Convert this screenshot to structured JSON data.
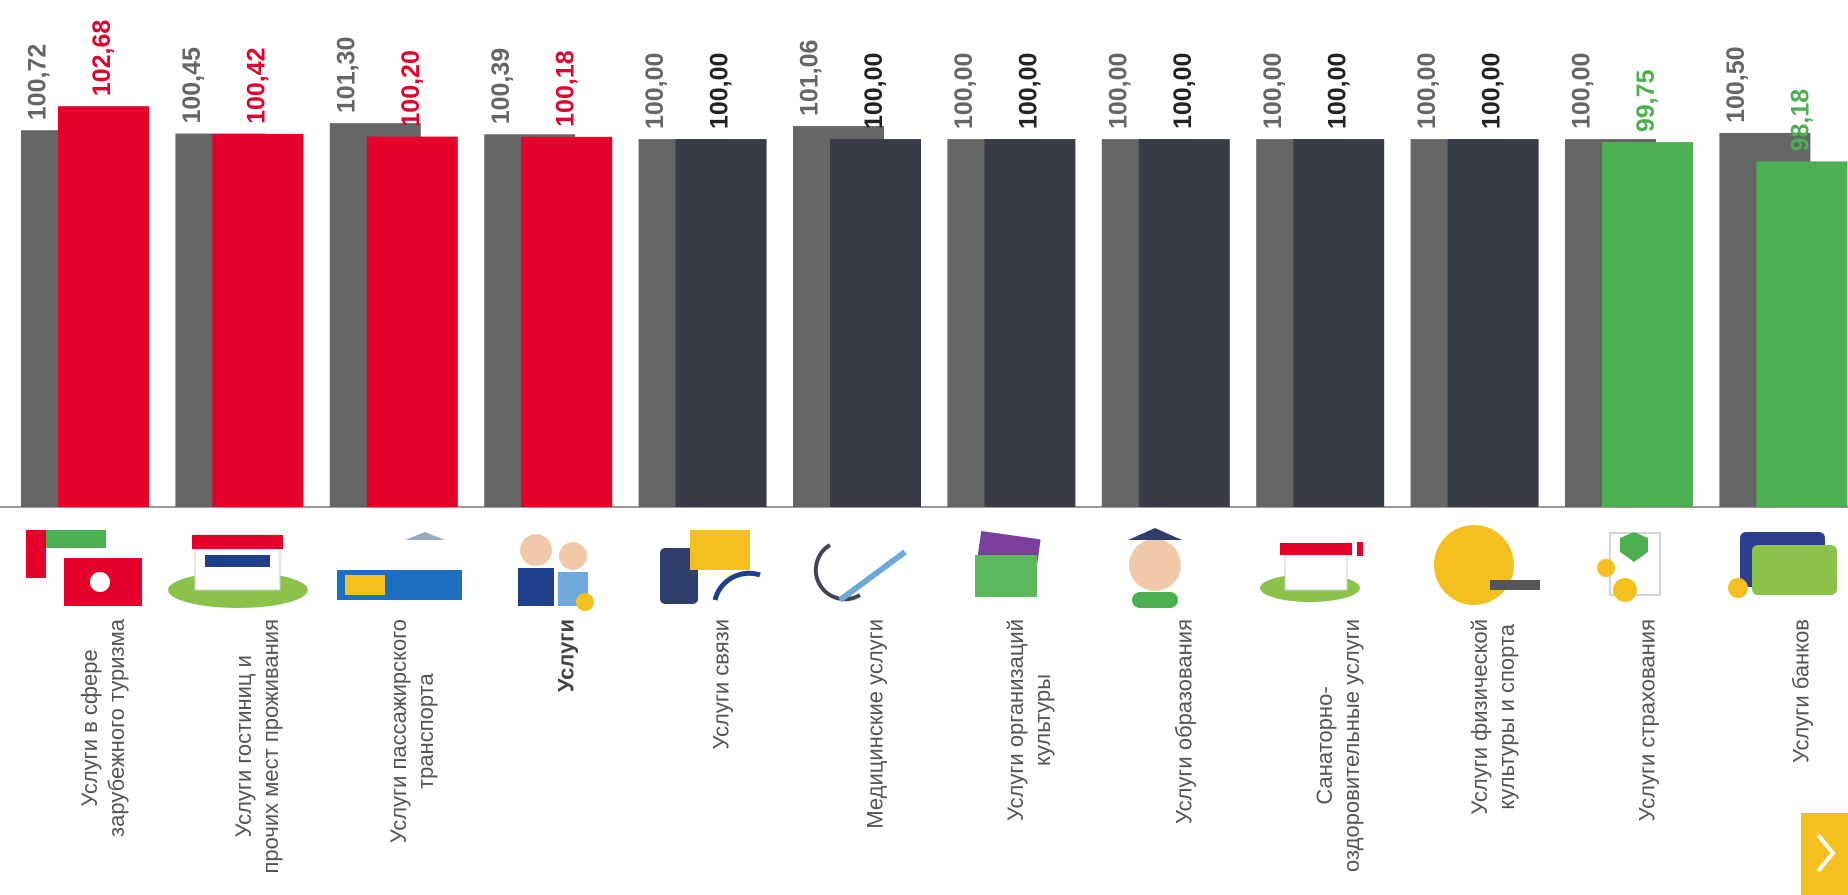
{
  "chart_data": {
    "type": "bar",
    "categories": [
      "Услуги в сфере\nзарубежного туризма",
      "Услуги гостиниц и\nпрочих мест проживания",
      "Услуги пассажирского\nтранспорта",
      "Услуги",
      "Услуги связи",
      "Медицинские услуги",
      "Услуги организаций\nкультуры",
      "Услуги образования",
      "Санаторно-\nоздоровительные услуги",
      "Услуги физической\nкультуры и спорта",
      "Услуги страхования",
      "Услуги банков"
    ],
    "category_bold": [
      false,
      false,
      false,
      true,
      false,
      false,
      false,
      false,
      false,
      false,
      false,
      false
    ],
    "series": [
      {
        "color": "#666666",
        "values": [
          100.72,
          100.45,
          101.3,
          100.39,
          100.0,
          101.06,
          100.0,
          100.0,
          100.0,
          100.0,
          100.0,
          100.5
        ],
        "value_labels": [
          "100,72",
          "100,45",
          "101,30",
          "100,39",
          "100,00",
          "101,06",
          "100,00",
          "100,00",
          "100,00",
          "100,00",
          "100,00",
          "100,50"
        ]
      },
      {
        "colors": [
          "#e4002b",
          "#e4002b",
          "#e4002b",
          "#e4002b",
          "#373c46",
          "#373c46",
          "#373c46",
          "#373c46",
          "#373c46",
          "#373c46",
          "#4caf50",
          "#4caf50"
        ],
        "values": [
          102.68,
          100.42,
          100.2,
          100.18,
          100.0,
          100.0,
          100.0,
          100.0,
          100.0,
          100.0,
          99.75,
          98.18
        ],
        "value_labels": [
          "102,68",
          "100,42",
          "100,20",
          "100,18",
          "100,00",
          "100,00",
          "100,00",
          "100,00",
          "100,00",
          "100,00",
          "99,75",
          "98,18"
        ]
      }
    ],
    "ylim": [
      70,
      104
    ]
  }
}
